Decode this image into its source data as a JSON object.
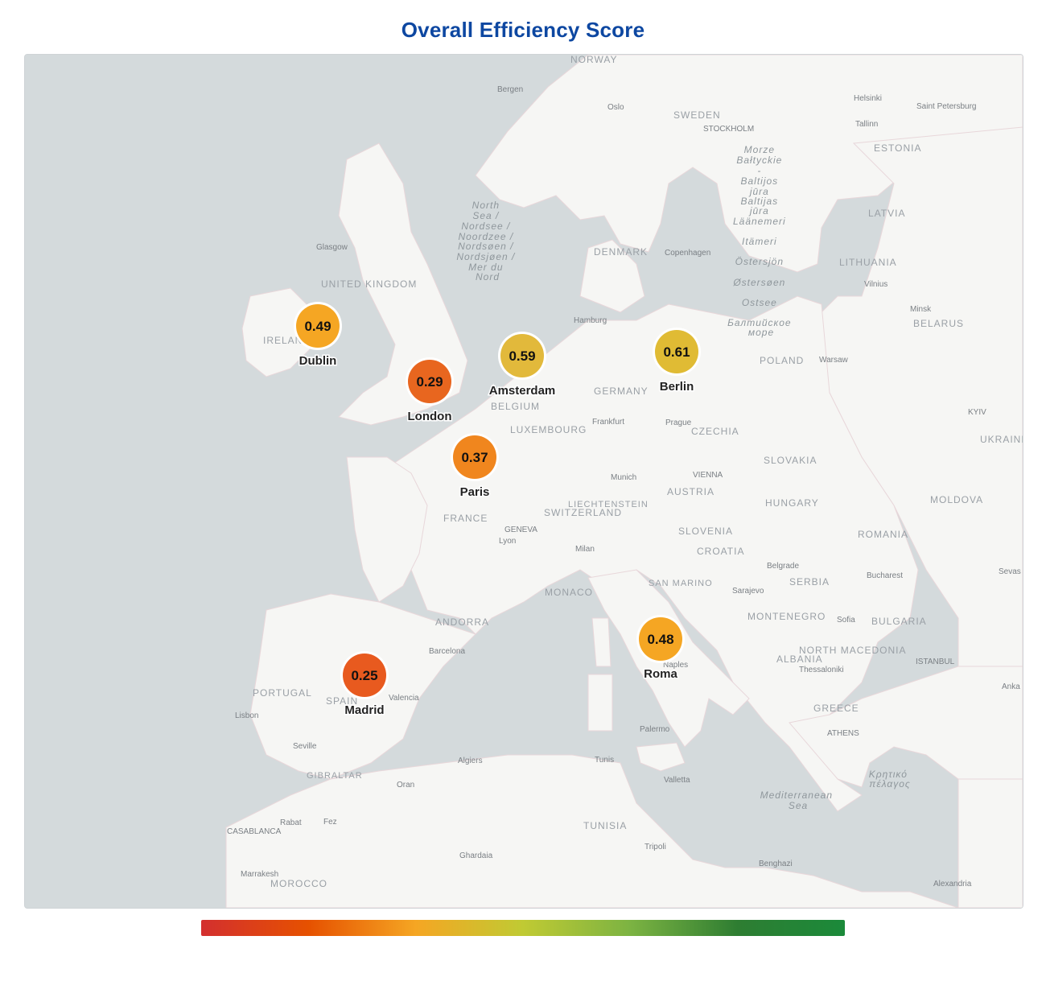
{
  "title": "Overall Efficiency Score",
  "legend": {
    "colors": [
      "#d32f2f",
      "#e65100",
      "#f5a623",
      "#c0ca33",
      "#7cb342",
      "#2e7d32",
      "#1b8a3a"
    ]
  },
  "cities": [
    {
      "name": "Dublin",
      "value": "0.49",
      "color": "#f5a623"
    },
    {
      "name": "London",
      "value": "0.29",
      "color": "#e8661f"
    },
    {
      "name": "Amsterdam",
      "value": "0.59",
      "color": "#e2b93b"
    },
    {
      "name": "Berlin",
      "value": "0.61",
      "color": "#e0bb34"
    },
    {
      "name": "Paris",
      "value": "0.37",
      "color": "#f0861e"
    },
    {
      "name": "Roma",
      "value": "0.48",
      "color": "#f5a623"
    },
    {
      "name": "Madrid",
      "value": "0.25",
      "color": "#e85a1f"
    }
  ],
  "country_labels": [
    "NORWAY",
    "SWEDEN",
    "ESTONIA",
    "LATVIA",
    "LITHUANIA",
    "BELARUS",
    "DENMARK",
    "UNITED KINGDOM",
    "IRELAND",
    "POLAND",
    "GERMANY",
    "BELGIUM",
    "LUXEMBOURG",
    "CZECHIA",
    "SLOVAKIA",
    "UKRAINE",
    "AUSTRIA",
    "HUNGARY",
    "MOLDOVA",
    "FRANCE",
    "SWITZERLAND",
    "LIECHTENSTEIN",
    "SLOVENIA",
    "CROATIA",
    "ROMANIA",
    "SERBIA",
    "MONACO",
    "SAN MARINO",
    "MONTENEGRO",
    "BULGARIA",
    "ANDORRA",
    "PORTUGAL",
    "SPAIN",
    "ALBANIA",
    "NORTH MACEDONIA",
    "GREECE",
    "GIBRALTAR",
    "TUNISIA",
    "MOROCCO"
  ],
  "city_labels": [
    "Bergen",
    "Oslo",
    "STOCKHOLM",
    "Helsinki",
    "Saint Petersburg",
    "Tallinn",
    "Glasgow",
    "Copenhagen",
    "Hamburg",
    "Vilnius",
    "Minsk",
    "Warsaw",
    "Frankfurt",
    "Prague",
    "KYIV",
    "Munich",
    "VIENNA",
    "GENEVA",
    "Lyon",
    "Milan",
    "Belgrade",
    "Bucharest",
    "Sarajevo",
    "Sofia",
    "Barcelona",
    "Valencia",
    "Lisbon",
    "Seville",
    "ISTANBUL",
    "Thessaloniki",
    "Naples",
    "ATHENS",
    "Palermo",
    "Algiers",
    "Tunis",
    "Valletta",
    "Oran",
    "Rabat",
    "Fez",
    "CASABLANCA",
    "Ghardaia",
    "Tripoli",
    "Benghazi",
    "Marrakesh",
    "Alexandria",
    "Sevas",
    "Anka"
  ],
  "sea_labels": [
    "North Sea / Nordsee / Noordzee / Nordsøen / Nordsjøen / Mer du Nord",
    "Morze Bałtyckie - Baltijos jūra - Baltijas jūra - Läänemeri - Itämeri - Östersjön - Østersøen - Ostsee - Балтийское море",
    "Mediterranean Sea",
    "Κρητικό πέλαγος"
  ]
}
